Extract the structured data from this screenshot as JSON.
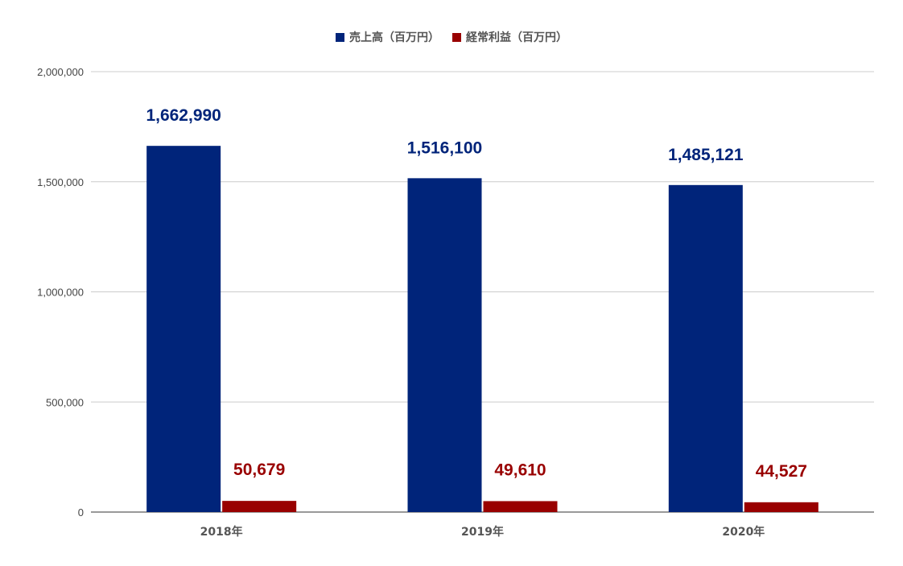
{
  "chart_data": {
    "type": "bar",
    "categories": [
      "2018年",
      "2019年",
      "2020年"
    ],
    "series": [
      {
        "name": "売上高（百万円）",
        "values": [
          1662990,
          1516100,
          1485121
        ],
        "labels": [
          "1,662,990",
          "1,516,100",
          "1,485,121"
        ],
        "color": "#00247a"
      },
      {
        "name": "経常利益（百万円）",
        "values": [
          50679,
          49610,
          44527
        ],
        "labels": [
          "50,679",
          "49,610",
          "44,527"
        ],
        "color": "#990000"
      }
    ],
    "ylim": [
      0,
      2000000
    ],
    "yticks": [
      0,
      500000,
      1000000,
      1500000,
      2000000
    ],
    "ytick_labels": [
      "0",
      "500,000",
      "1,000,000",
      "1,500,000",
      "2,000,000"
    ],
    "grid": true,
    "legend_position": "top",
    "title": "",
    "xlabel": "",
    "ylabel": ""
  }
}
